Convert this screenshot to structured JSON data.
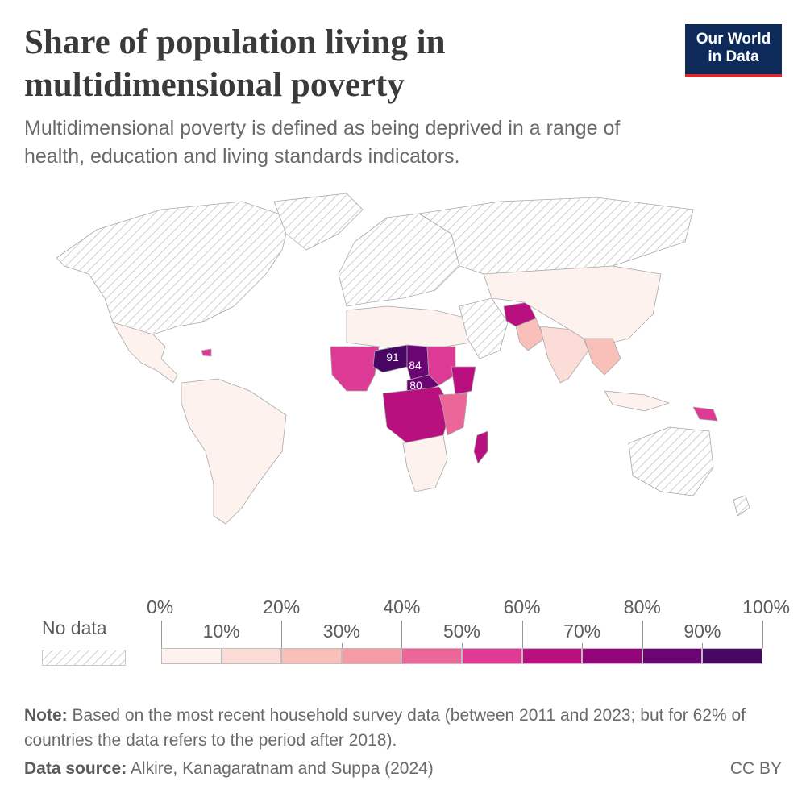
{
  "header": {
    "title": "Share of population living in multidimensional poverty",
    "subtitle": "Multidimensional poverty is defined as being deprived in a range of health, education and living standards indicators.",
    "logo_line1": "Our World",
    "logo_line2": "in Data"
  },
  "colors": {
    "bins": [
      "#fdf2ee",
      "#fbdcd6",
      "#f8c0b8",
      "#f49ba6",
      "#ec669a",
      "#dc3a95",
      "#b9107f",
      "#93067a",
      "#6b0573",
      "#470762"
    ],
    "no_data_hatch": "#cfcfcf",
    "land_border": "#a9a9a9",
    "logo_bg": "#0d2a5a",
    "logo_accent": "#d62b2b"
  },
  "legend": {
    "no_data_label": "No data",
    "top_ticks": [
      "0%",
      "20%",
      "40%",
      "60%",
      "80%",
      "100%"
    ],
    "bottom_ticks": [
      "10%",
      "30%",
      "50%",
      "70%",
      "90%"
    ]
  },
  "chart_data": {
    "type": "choropleth",
    "unit": "%",
    "scale": {
      "min": 0,
      "max": 100,
      "step": 10
    },
    "annotations": [
      {
        "label": "91",
        "value": 91
      },
      {
        "label": "84",
        "value": 84
      },
      {
        "label": "80",
        "value": 80
      }
    ]
  },
  "footer": {
    "note_label": "Note:",
    "note_text": " Based on the most recent household survey data (between 2011 and 2023; but for 62% of countries the data refers to the period after 2018).",
    "source_label": "Data source:",
    "source_text": " Alkire, Kanagaratnam and Suppa (2024)",
    "license": "CC BY"
  }
}
